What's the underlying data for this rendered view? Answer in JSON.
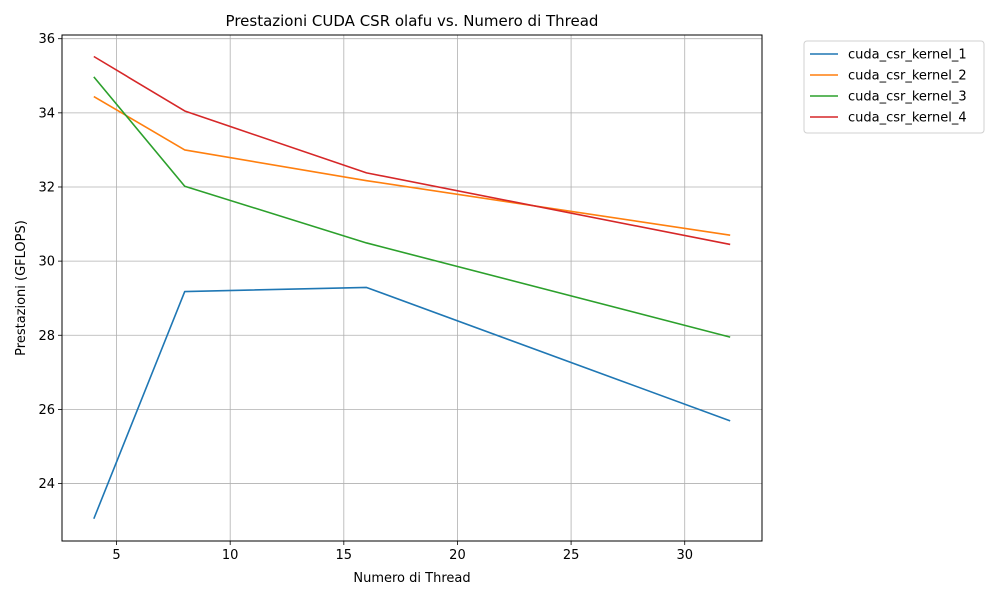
{
  "chart_data": {
    "type": "line",
    "title": "Prestazioni CUDA CSR olafu vs. Numero di Thread",
    "xlabel": "Numero di Thread",
    "ylabel": "Prestazioni (GFLOPS)",
    "x": [
      4,
      8,
      16,
      32
    ],
    "xlim": [
      2.6,
      33.4
    ],
    "ylim": [
      22.45,
      36.1
    ],
    "xticks": [
      5,
      10,
      15,
      20,
      25,
      30
    ],
    "yticks": [
      24,
      26,
      28,
      30,
      32,
      34,
      36
    ],
    "grid": true,
    "legend_position": "outside-top-right",
    "series": [
      {
        "name": "cuda_csr_kernel_1",
        "color": "#1f77b4",
        "values": [
          23.05,
          29.18,
          29.29,
          25.69
        ]
      },
      {
        "name": "cuda_csr_kernel_2",
        "color": "#ff7f0e",
        "values": [
          34.44,
          33.0,
          32.17,
          30.7
        ]
      },
      {
        "name": "cuda_csr_kernel_3",
        "color": "#2ca02c",
        "values": [
          34.97,
          32.02,
          30.49,
          27.95
        ]
      },
      {
        "name": "cuda_csr_kernel_4",
        "color": "#d62728",
        "values": [
          35.52,
          34.05,
          32.38,
          30.45
        ]
      }
    ]
  }
}
